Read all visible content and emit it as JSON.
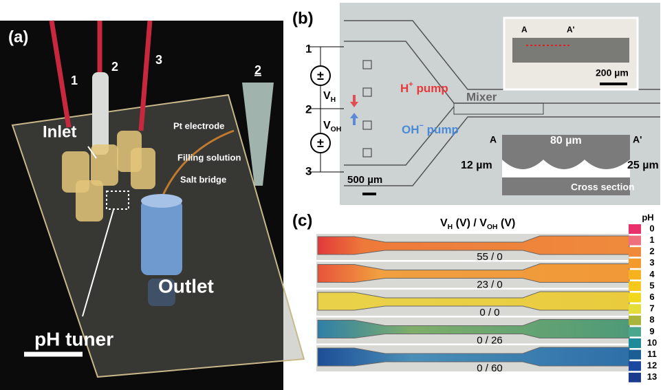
{
  "panel_a": {
    "label": "(a)",
    "electrodes": [
      "1",
      "2",
      "3"
    ],
    "inset_electrode": "2",
    "inlet": "Inlet",
    "pt_electrode": "Pt electrode",
    "filling_solution": "Filling solution",
    "salt_bridge": "Salt bridge",
    "ph_tuner": "pH tuner",
    "outlet": "Outlet"
  },
  "panel_b": {
    "label": "(b)",
    "electrodes": [
      "1",
      "2",
      "3"
    ],
    "source_symbol": "±",
    "v_h": {
      "symbol": "V",
      "subscript": "H"
    },
    "v_oh": {
      "symbol": "V",
      "subscript": "OH"
    },
    "h_pump": {
      "ion": "H",
      "charge": "+",
      "text": " pump"
    },
    "oh_pump": {
      "ion": "OH",
      "charge": "−",
      "text": " pump"
    },
    "mixer": "Mixer",
    "scale_bar": "500 µm",
    "inset_a": "A",
    "inset_a_prime": "A'",
    "inset_scale_bar": "200 µm",
    "cross_section": {
      "a": "A",
      "a_prime": "A'",
      "width": "80 µm",
      "depth_left": "12 µm",
      "depth_right": "25 µm",
      "caption": "Cross section"
    }
  },
  "panel_c": {
    "label": "(c)",
    "heading": {
      "v1": "V",
      "s1": "H",
      "mid": " (V) / ",
      "v2": "V",
      "s2": "OH",
      "end": " (V)"
    },
    "rows": [
      "55 / 0",
      "23 / 0",
      "0 / 0",
      "0 / 26",
      "0 / 60"
    ],
    "ph_scale": {
      "title": "pH",
      "levels": [
        0,
        1,
        2,
        3,
        4,
        5,
        6,
        7,
        8,
        9,
        10,
        11,
        12,
        13
      ],
      "colors": [
        "#e8306a",
        "#ee6f7e",
        "#f08a3a",
        "#f29a2a",
        "#f5b21e",
        "#f6c81c",
        "#f2d81c",
        "#e5dd3a",
        "#a9b43a",
        "#4aa78e",
        "#1f8a9a",
        "#1b5e95",
        "#1b47a0",
        "#1a3a8c"
      ]
    }
  }
}
